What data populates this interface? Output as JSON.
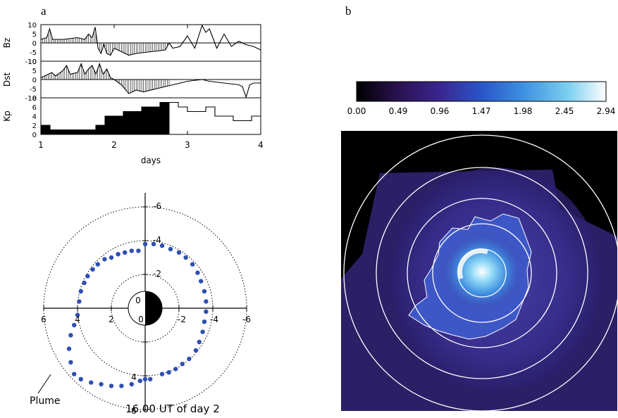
{
  "panel_a": {
    "label": "a"
  },
  "panel_b": {
    "label": "b"
  },
  "timeseries": {
    "xlabel": "days",
    "xticks": [
      "1",
      "2",
      "3",
      "4"
    ],
    "bz": {
      "label": "Bz",
      "ticks": [
        "10",
        "5",
        "0",
        "-5",
        "-10"
      ]
    },
    "dst": {
      "label": "Dst",
      "ticks": [
        "10",
        "5",
        "0",
        "-5",
        "-10"
      ]
    },
    "kp": {
      "label": "Kp",
      "ticks": [
        "8",
        "6",
        "4",
        "2",
        "0"
      ]
    }
  },
  "polar_plot": {
    "top_ticks": [
      "-6",
      "-4",
      "-2"
    ],
    "bottom_ticks": [
      "4",
      "6"
    ],
    "left_ticks": [
      "6",
      "4",
      "2"
    ],
    "center_ticks": [
      "0",
      "0"
    ],
    "right_ticks": [
      "-2",
      "-4",
      "-6"
    ],
    "plume_label": "Plume",
    "time_caption": "16.00 UT of day 2"
  },
  "colorbar": {
    "ticks": [
      "0.00",
      "0.49",
      "0.96",
      "1.47",
      "1.98",
      "2.45",
      "2.94"
    ],
    "colors": [
      "#000000",
      "#2a1250",
      "#3a2590",
      "#2a55c8",
      "#3c8fe0",
      "#7cd0f0",
      "#ffffff"
    ]
  },
  "chart_data": [
    {
      "type": "line",
      "title": "",
      "xlabel": "days",
      "ylabel": "Bz",
      "xlim": [
        1,
        4
      ],
      "ylim": [
        -10,
        10
      ],
      "x": [
        1.0,
        1.08,
        1.12,
        1.16,
        1.3,
        1.5,
        1.6,
        1.65,
        1.7,
        1.74,
        1.78,
        1.82,
        1.86,
        1.9,
        1.95,
        2.0,
        2.1,
        2.2,
        2.3,
        2.5,
        2.7,
        2.75,
        2.8,
        2.9,
        3.0,
        3.1,
        3.2,
        3.25,
        3.3,
        3.4,
        3.5,
        3.6,
        3.7,
        3.8,
        3.9,
        4.0
      ],
      "values": [
        2,
        3,
        8,
        2,
        2,
        3,
        2,
        5,
        3,
        9,
        -3,
        -6,
        -1,
        -6,
        -7,
        -3,
        -5,
        -7,
        -6,
        -5,
        -4,
        0,
        -3,
        -2,
        4,
        -3,
        10,
        6,
        8,
        -3,
        5,
        -2,
        1,
        -1,
        -2,
        -4
      ]
    },
    {
      "type": "line",
      "title": "",
      "xlabel": "days",
      "ylabel": "Dst",
      "xlim": [
        1,
        4
      ],
      "ylim": [
        -10,
        10
      ],
      "x": [
        1.0,
        1.1,
        1.15,
        1.2,
        1.3,
        1.35,
        1.4,
        1.5,
        1.55,
        1.6,
        1.65,
        1.7,
        1.75,
        1.8,
        1.85,
        1.9,
        1.95,
        2.0,
        2.1,
        2.2,
        2.3,
        2.4,
        2.6,
        2.8,
        3.0,
        3.2,
        3.3,
        3.5,
        3.7,
        3.75,
        3.8,
        3.85,
        3.9,
        4.0
      ],
      "values": [
        1,
        3,
        4,
        2,
        5,
        8,
        3,
        4,
        9,
        3,
        6,
        8,
        3,
        9,
        3,
        6,
        1,
        0,
        -3,
        -8,
        -6,
        -7,
        -5,
        -3,
        -1,
        0,
        -1,
        -2,
        -3,
        -4,
        -10,
        -3,
        -2,
        -2
      ]
    },
    {
      "type": "bar",
      "title": "",
      "xlabel": "days",
      "ylabel": "Kp",
      "xlim": [
        1,
        4
      ],
      "ylim": [
        0,
        8
      ],
      "x": [
        1.0,
        1.125,
        1.25,
        1.375,
        1.5,
        1.625,
        1.75,
        1.875,
        2.0,
        2.125,
        2.25,
        2.375,
        2.5,
        2.625,
        2.75,
        2.875,
        3.0,
        3.125,
        3.25,
        3.375,
        3.5,
        3.625,
        3.75,
        3.875
      ],
      "values": [
        2,
        1,
        1,
        1,
        1,
        1,
        2,
        4,
        4,
        5,
        5,
        6,
        6,
        7,
        7,
        6,
        5,
        5,
        6,
        4,
        4,
        3,
        3,
        4
      ]
    },
    {
      "type": "scatter",
      "title": "",
      "caption": "16.00 UT of day 2",
      "xlim": [
        6,
        -6
      ],
      "ylim": [
        -6,
        6
      ],
      "annotation": "Plume",
      "series": [
        {
          "x": [
            0.0,
            -0.5,
            -1.0,
            -1.5,
            -2.0,
            -2.4,
            -2.8,
            -3.1,
            -3.3,
            -3.5,
            -3.6,
            -3.6,
            -3.5,
            -3.4,
            -3.2,
            -3.0,
            -2.6,
            -2.2,
            -1.8,
            -1.4,
            -1.0
          ],
          "y": [
            -3.8,
            -3.8,
            -3.7,
            -3.5,
            -3.3,
            -3.0,
            -2.6,
            -2.1,
            -1.6,
            -1.0,
            -0.4,
            0.2,
            0.8,
            1.4,
            2.0,
            2.5,
            3.0,
            3.3,
            3.6,
            3.8,
            3.9
          ]
        },
        {
          "x": [
            0.4,
            0.8,
            1.2,
            1.6,
            2.0,
            2.4,
            2.8,
            3.1,
            3.4,
            3.6,
            3.8,
            3.9,
            4.0,
            4.2,
            4.4,
            4.5,
            4.4,
            4.2,
            3.8,
            3.2,
            2.6,
            2.0,
            1.4,
            0.8,
            0.3,
            0.0,
            -0.3
          ],
          "y": [
            -3.4,
            -3.4,
            -3.3,
            -3.2,
            -3.0,
            -2.9,
            -2.6,
            -2.3,
            -1.9,
            -1.5,
            -1.0,
            -0.4,
            0.4,
            1.0,
            1.6,
            2.4,
            3.2,
            3.9,
            4.2,
            4.4,
            4.5,
            4.6,
            4.6,
            4.5,
            4.3,
            4.2,
            4.2
          ]
        }
      ]
    }
  ]
}
